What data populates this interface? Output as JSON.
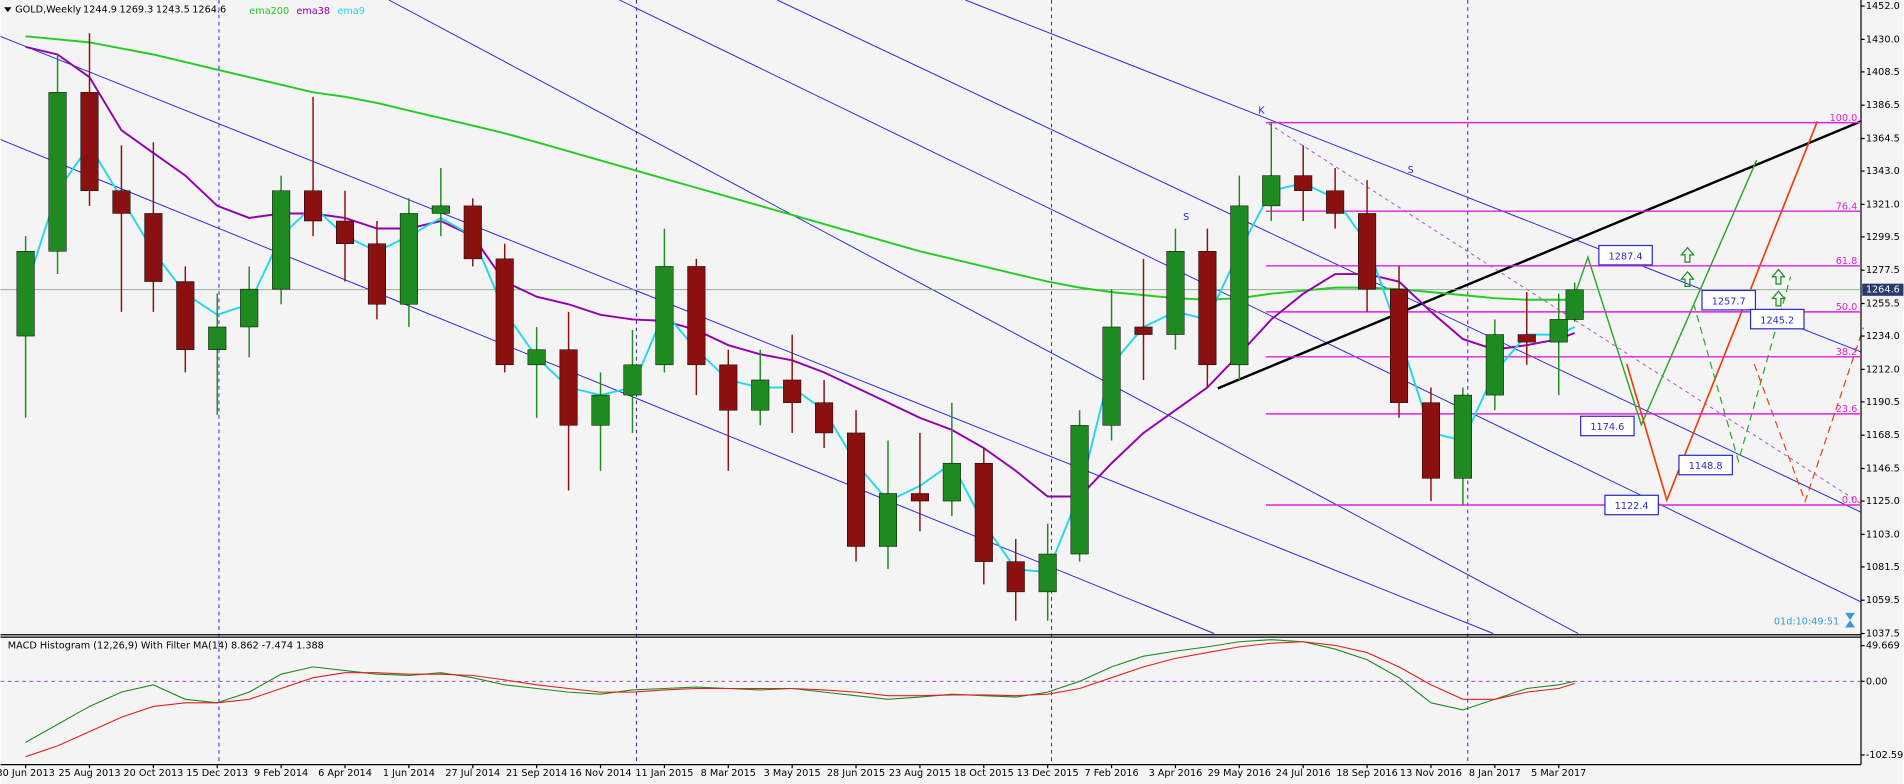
{
  "chart_data": {
    "type": "candlestick",
    "symbol": "GOLD,Weekly",
    "up_color": "#1f8a1f",
    "down_color": "#8b1010",
    "x": [
      "30 Jun 2013",
      "28 Jul 2013",
      "25 Aug 2013",
      "22 Sep 2013",
      "20 Oct 2013",
      "17 Nov 2013",
      "15 Dec 2013",
      "12 Jan 2014",
      "9 Feb 2014",
      "9 Mar 2014",
      "6 Apr 2014",
      "4 May 2014",
      "1 Jun 2014",
      "29 Jun 2014",
      "27 Jul 2014",
      "24 Aug 2014",
      "21 Sep 2014",
      "19 Oct 2014",
      "16 Nov 2014",
      "14 Dec 2014",
      "11 Jan 2015",
      "8 Feb 2015",
      "8 Mar 2015",
      "5 Apr 2015",
      "3 May 2015",
      "31 May 2015",
      "28 Jun 2015",
      "26 Jul 2015",
      "23 Aug 2015",
      "20 Sep 2015",
      "18 Oct 2015",
      "15 Nov 2015",
      "13 Dec 2015",
      "10 Jan 2016",
      "7 Feb 2016",
      "6 Mar 2016",
      "3 Apr 2016",
      "1 May 2016",
      "29 May 2016",
      "26 Jun 2016",
      "24 Jul 2016",
      "21 Aug 2016",
      "18 Sep 2016",
      "16 Oct 2016",
      "13 Nov 2016",
      "11 Dec 2016",
      "8 Jan 2017",
      "5 Feb 2017",
      "5 Mar 2017",
      "19 Mar 2017"
    ],
    "open": [
      1234,
      1290,
      1395,
      1330,
      1315,
      1270,
      1225,
      1240,
      1265,
      1330,
      1310,
      1295,
      1255,
      1315,
      1320,
      1285,
      1215,
      1225,
      1175,
      1195,
      1215,
      1280,
      1215,
      1185,
      1205,
      1190,
      1170,
      1095,
      1130,
      1125,
      1150,
      1085,
      1065,
      1090,
      1175,
      1240,
      1235,
      1290,
      1215,
      1320,
      1340,
      1330,
      1315,
      1265,
      1190,
      1140,
      1195,
      1235,
      1230,
      1244.9
    ],
    "high": [
      1300,
      1420,
      1434,
      1360,
      1362,
      1280,
      1262,
      1280,
      1340,
      1392,
      1330,
      1310,
      1325,
      1345,
      1325,
      1295,
      1240,
      1250,
      1210,
      1238,
      1305,
      1285,
      1225,
      1225,
      1235,
      1205,
      1185,
      1165,
      1170,
      1190,
      1160,
      1100,
      1110,
      1185,
      1265,
      1285,
      1305,
      1305,
      1340,
      1375,
      1360,
      1345,
      1337,
      1280,
      1200,
      1200,
      1245,
      1263,
      1262,
      1269.3
    ],
    "low": [
      1180,
      1275,
      1320,
      1250,
      1250,
      1210,
      1182,
      1220,
      1255,
      1300,
      1270,
      1245,
      1240,
      1300,
      1280,
      1210,
      1180,
      1132,
      1145,
      1170,
      1210,
      1195,
      1145,
      1175,
      1170,
      1160,
      1085,
      1080,
      1105,
      1115,
      1070,
      1046,
      1046,
      1085,
      1165,
      1205,
      1225,
      1200,
      1205,
      1310,
      1310,
      1305,
      1250,
      1180,
      1125,
      1122,
      1185,
      1215,
      1195,
      1243.5
    ],
    "close": [
      1290,
      1395,
      1330,
      1315,
      1270,
      1225,
      1240,
      1265,
      1330,
      1310,
      1295,
      1255,
      1315,
      1320,
      1285,
      1215,
      1225,
      1175,
      1195,
      1215,
      1280,
      1215,
      1185,
      1205,
      1190,
      1170,
      1095,
      1130,
      1125,
      1150,
      1085,
      1065,
      1090,
      1175,
      1240,
      1235,
      1290,
      1215,
      1320,
      1340,
      1330,
      1315,
      1265,
      1190,
      1140,
      1195,
      1235,
      1230,
      1245,
      1264.6
    ],
    "series": [
      {
        "name": "ema200",
        "color": "#22cc22",
        "values": [
          1432,
          1430,
          1428,
          1424,
          1420,
          1415,
          1410,
          1405,
          1400,
          1395,
          1392,
          1388,
          1383,
          1378,
          1373,
          1368,
          1362,
          1356,
          1350,
          1344,
          1338,
          1332,
          1326,
          1320,
          1314,
          1308,
          1302,
          1296,
          1290,
          1285,
          1280,
          1275,
          1270,
          1266,
          1263,
          1261,
          1259,
          1258,
          1259,
          1262,
          1264,
          1266,
          1266,
          1265,
          1263,
          1261,
          1259,
          1258,
          1258,
          1258
        ]
      },
      {
        "name": "ema38",
        "color": "#9400b0",
        "values": [
          1425,
          1420,
          1405,
          1370,
          1355,
          1340,
          1320,
          1312,
          1315,
          1315,
          1312,
          1305,
          1305,
          1310,
          1300,
          1270,
          1260,
          1255,
          1248,
          1245,
          1244,
          1238,
          1228,
          1222,
          1218,
          1210,
          1200,
          1190,
          1180,
          1172,
          1160,
          1145,
          1128,
          1128,
          1150,
          1170,
          1185,
          1200,
          1222,
          1245,
          1262,
          1275,
          1275,
          1270,
          1250,
          1232,
          1225,
          1228,
          1232,
          1236
        ]
      },
      {
        "name": "ema9",
        "color": "#22d8ee",
        "values": [
          1265,
          1330,
          1360,
          1325,
          1290,
          1262,
          1248,
          1255,
          1300,
          1320,
          1300,
          1290,
          1300,
          1312,
          1300,
          1250,
          1220,
          1200,
          1195,
          1200,
          1250,
          1225,
          1205,
          1200,
          1200,
          1185,
          1150,
          1125,
          1135,
          1150,
          1110,
          1080,
          1078,
          1130,
          1215,
          1240,
          1250,
          1245,
          1290,
          1330,
          1335,
          1325,
          1295,
          1235,
          1170,
          1165,
          1210,
          1235,
          1235,
          1240
        ]
      }
    ],
    "xlim": [
      "8 Jun 2013",
      "25 Nov 2017"
    ],
    "xticks": [
      "30 Jun 2013",
      "25 Aug 2013",
      "20 Oct 2013",
      "15 Dec 2013",
      "9 Feb 2014",
      "6 Apr 2014",
      "1 Jun 2014",
      "27 Jul 2014",
      "21 Sep 2014",
      "16 Nov 2014",
      "11 Jan 2015",
      "8 Mar 2015",
      "3 May 2015",
      "28 Jun 2015",
      "23 Aug 2015",
      "18 Oct 2015",
      "13 Dec 2015",
      "7 Feb 2016",
      "3 Apr 2016",
      "29 May 2016",
      "24 Jul 2016",
      "18 Sep 2016",
      "13 Nov 2016",
      "8 Jan 2017",
      "5 Mar 2017"
    ],
    "ylim": [
      1036.7,
      1456
    ],
    "yticks": [
      {
        "value": 1452,
        "label": "1452.0"
      },
      {
        "value": 1430,
        "label": "1430.0"
      },
      1408.5,
      1386.5,
      1364.5,
      {
        "value": 1343,
        "label": "1343.0"
      },
      {
        "value": 1321,
        "label": "1321.0"
      },
      1299.5,
      1277.5,
      1255.5,
      {
        "value": 1234,
        "label": "1234.0"
      },
      {
        "value": 1212,
        "label": "1212.0"
      },
      1190.5,
      1168.5,
      1146.5,
      {
        "value": 1125,
        "label": "1125.0"
      },
      {
        "value": 1103,
        "label": "1103.0"
      },
      1081.5,
      1059.5,
      1037.5
    ],
    "last_price": 1264.6,
    "fib_levels": [
      {
        "label": "100.0",
        "price": 1375
      },
      {
        "label": "76.4",
        "price": 1316.5
      },
      {
        "label": "61.8",
        "price": 1280.4
      },
      {
        "label": "50.0",
        "price": 1250
      },
      {
        "label": "38.2",
        "price": 1220.3
      },
      {
        "label": "23.6",
        "price": 1182.6
      },
      {
        "label": "0.0",
        "price": 1122.4
      }
    ],
    "fib_color": "#e020e0",
    "targets": [
      1287.4,
      1257.7,
      1245.2,
      1174.6,
      1148.8,
      1122.4
    ],
    "annotations": [
      "K",
      "S",
      "S"
    ],
    "timer": "01d:10:49:51",
    "macd": {
      "title": "MACD Histogram (12,26,9) With Filter MA(14) 8.862 -7.474 1.388",
      "series": [
        {
          "color": "#1f8a1f",
          "values": [
            -85,
            -60,
            -35,
            -15,
            -5,
            -25,
            -30,
            -15,
            10,
            20,
            15,
            10,
            8,
            12,
            5,
            -5,
            -10,
            -15,
            -18,
            -12,
            -10,
            -8,
            -10,
            -12,
            -10,
            -15,
            -20,
            -25,
            -22,
            -18,
            -20,
            -22,
            -15,
            0,
            20,
            35,
            42,
            48,
            55,
            58,
            55,
            45,
            30,
            5,
            -30,
            -40,
            -25,
            -10,
            -5,
            0
          ]
        },
        {
          "color": "#e02020",
          "values": [
            -105,
            -90,
            -70,
            -50,
            -35,
            -30,
            -30,
            -25,
            -10,
            5,
            12,
            12,
            10,
            10,
            8,
            2,
            -5,
            -10,
            -15,
            -15,
            -12,
            -10,
            -10,
            -10,
            -10,
            -12,
            -15,
            -20,
            -20,
            -19,
            -19,
            -20,
            -18,
            -10,
            5,
            20,
            32,
            40,
            48,
            53,
            55,
            50,
            40,
            20,
            -5,
            -25,
            -25,
            -15,
            -10,
            -3
          ]
        }
      ],
      "ylim": [
        -116,
        61.5
      ],
      "yticks": [
        49.669,
        {
          "value": 0,
          "label": "0.00"
        },
        -102.59
      ]
    }
  }
}
